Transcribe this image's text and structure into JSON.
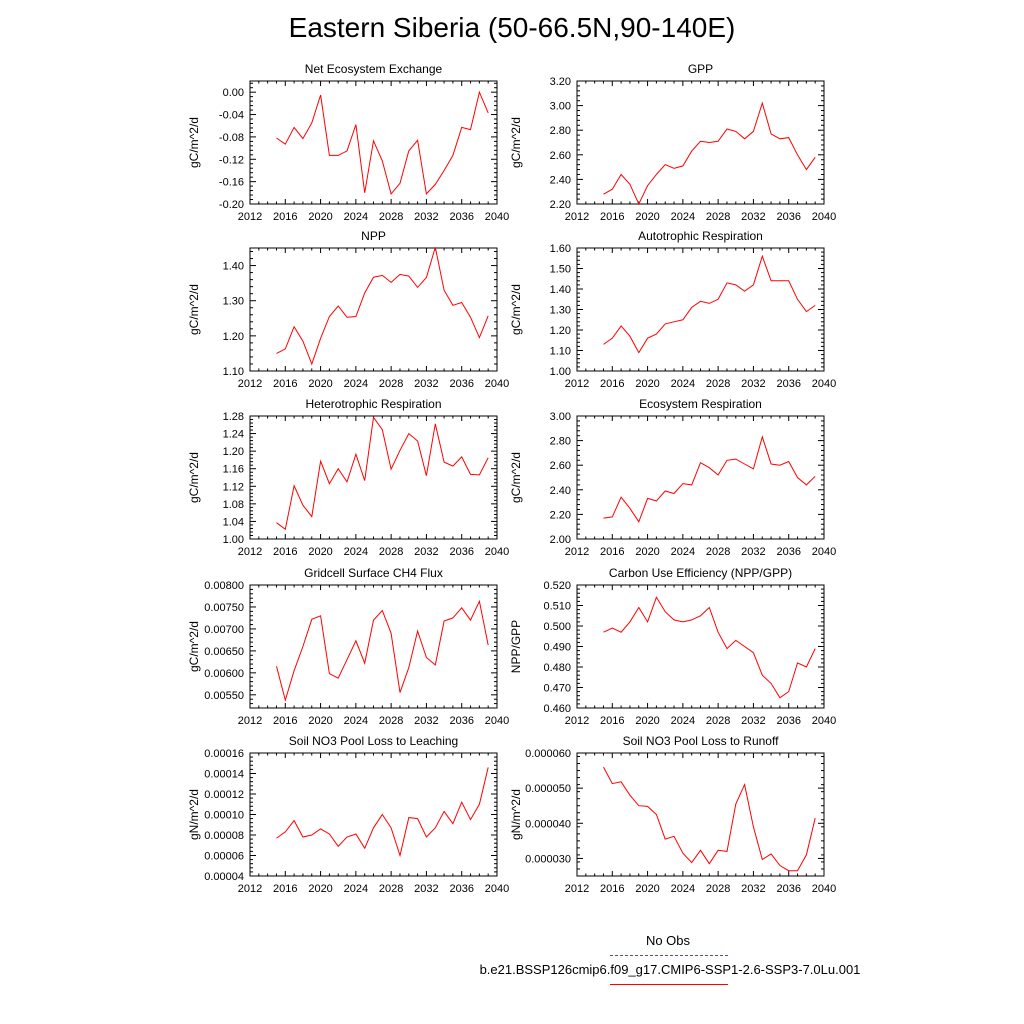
{
  "title": "Eastern Siberia (50-66.5N,90-140E)",
  "legend": {
    "items": [
      {
        "label": "No Obs",
        "color": "#4b4bd2",
        "style": "dashed"
      },
      {
        "label": "b.e21.BSSP126cmip6.f09_g17.CMIP6-SSP1-2.6-SSP3-7.0Lu.001",
        "color": "#ff0000",
        "style": "solid"
      }
    ]
  },
  "chart_data": [
    {
      "type": "line",
      "title": "Net Ecosystem Exchange",
      "ylabel": "gC/m^2/d",
      "xlim": [
        2012,
        2040
      ],
      "ylim": [
        -0.2,
        0.02
      ],
      "xticks": [
        "2012",
        "2016",
        "2020",
        "2024",
        "2028",
        "2032",
        "2036",
        "2040"
      ],
      "yticks": [
        "-0.20",
        "-0.16",
        "-0.12",
        "-0.08",
        "-0.04",
        "0.00"
      ],
      "series": [
        {
          "color": "#ff0000",
          "x": [
            2015,
            2016,
            2017,
            2018,
            2019,
            2020,
            2021,
            2022,
            2023,
            2024,
            2025,
            2026,
            2027,
            2028,
            2029,
            2030,
            2031,
            2032,
            2033,
            2034,
            2035,
            2036,
            2037,
            2038,
            2039
          ],
          "y": [
            -0.082,
            -0.093,
            -0.063,
            -0.083,
            -0.055,
            -0.005,
            -0.113,
            -0.113,
            -0.105,
            -0.058,
            -0.18,
            -0.087,
            -0.123,
            -0.182,
            -0.163,
            -0.105,
            -0.086,
            -0.182,
            -0.165,
            -0.14,
            -0.113,
            -0.063,
            -0.067,
            0.0,
            -0.037
          ]
        }
      ]
    },
    {
      "type": "line",
      "title": "GPP",
      "ylabel": "gC/m^2/d",
      "xlim": [
        2012,
        2040
      ],
      "ylim": [
        2.2,
        3.2
      ],
      "xticks": [
        "2012",
        "2016",
        "2020",
        "2024",
        "2028",
        "2032",
        "2036",
        "2040"
      ],
      "yticks": [
        "2.20",
        "2.40",
        "2.60",
        "2.80",
        "3.00",
        "3.20"
      ],
      "series": [
        {
          "color": "#ff0000",
          "x": [
            2015,
            2016,
            2017,
            2018,
            2019,
            2020,
            2021,
            2022,
            2023,
            2024,
            2025,
            2026,
            2027,
            2028,
            2029,
            2030,
            2031,
            2032,
            2033,
            2034,
            2035,
            2036,
            2037,
            2038,
            2039
          ],
          "y": [
            2.28,
            2.32,
            2.44,
            2.36,
            2.2,
            2.35,
            2.44,
            2.52,
            2.49,
            2.51,
            2.63,
            2.71,
            2.7,
            2.71,
            2.81,
            2.79,
            2.73,
            2.79,
            3.02,
            2.77,
            2.73,
            2.74,
            2.6,
            2.48,
            2.58
          ]
        }
      ]
    },
    {
      "type": "line",
      "title": "NPP",
      "ylabel": "gC/m^2/d",
      "xlim": [
        2012,
        2040
      ],
      "ylim": [
        1.1,
        1.45
      ],
      "xticks": [
        "2012",
        "2016",
        "2020",
        "2024",
        "2028",
        "2032",
        "2036",
        "2040"
      ],
      "yticks": [
        "1.10",
        "1.20",
        "1.30",
        "1.40"
      ],
      "series": [
        {
          "color": "#ff0000",
          "x": [
            2015,
            2016,
            2017,
            2018,
            2019,
            2020,
            2021,
            2022,
            2023,
            2024,
            2025,
            2026,
            2027,
            2028,
            2029,
            2030,
            2031,
            2032,
            2033,
            2034,
            2035,
            2036,
            2037,
            2038,
            2039
          ],
          "y": [
            1.15,
            1.163,
            1.226,
            1.185,
            1.12,
            1.193,
            1.255,
            1.285,
            1.253,
            1.255,
            1.322,
            1.367,
            1.372,
            1.352,
            1.375,
            1.37,
            1.338,
            1.366,
            1.452,
            1.33,
            1.287,
            1.295,
            1.253,
            1.195,
            1.257
          ]
        }
      ]
    },
    {
      "type": "line",
      "title": "Autotrophic Respiration",
      "ylabel": "gC/m^2/d",
      "xlim": [
        2012,
        2040
      ],
      "ylim": [
        1.0,
        1.6
      ],
      "xticks": [
        "2012",
        "2016",
        "2020",
        "2024",
        "2028",
        "2032",
        "2036",
        "2040"
      ],
      "yticks": [
        "1.00",
        "1.10",
        "1.20",
        "1.30",
        "1.40",
        "1.50",
        "1.60"
      ],
      "series": [
        {
          "color": "#ff0000",
          "x": [
            2015,
            2016,
            2017,
            2018,
            2019,
            2020,
            2021,
            2022,
            2023,
            2024,
            2025,
            2026,
            2027,
            2028,
            2029,
            2030,
            2031,
            2032,
            2033,
            2034,
            2035,
            2036,
            2037,
            2038,
            2039
          ],
          "y": [
            1.13,
            1.16,
            1.22,
            1.17,
            1.09,
            1.16,
            1.18,
            1.23,
            1.24,
            1.25,
            1.31,
            1.34,
            1.33,
            1.35,
            1.43,
            1.42,
            1.39,
            1.42,
            1.56,
            1.44,
            1.44,
            1.44,
            1.35,
            1.29,
            1.32
          ]
        }
      ]
    },
    {
      "type": "line",
      "title": "Heterotrophic Respiration",
      "ylabel": "gC/m^2/d",
      "xlim": [
        2012,
        2040
      ],
      "ylim": [
        1.0,
        1.28
      ],
      "xticks": [
        "2012",
        "2016",
        "2020",
        "2024",
        "2028",
        "2032",
        "2036",
        "2040"
      ],
      "yticks": [
        "1.00",
        "1.04",
        "1.08",
        "1.12",
        "1.16",
        "1.20",
        "1.24",
        "1.28"
      ],
      "series": [
        {
          "color": "#ff0000",
          "x": [
            2015,
            2016,
            2017,
            2018,
            2019,
            2020,
            2021,
            2022,
            2023,
            2024,
            2025,
            2026,
            2027,
            2028,
            2029,
            2030,
            2031,
            2032,
            2033,
            2034,
            2035,
            2036,
            2037,
            2038,
            2039
          ],
          "y": [
            1.037,
            1.022,
            1.121,
            1.077,
            1.051,
            1.177,
            1.126,
            1.16,
            1.13,
            1.193,
            1.133,
            1.277,
            1.249,
            1.159,
            1.202,
            1.24,
            1.223,
            1.144,
            1.262,
            1.175,
            1.166,
            1.187,
            1.147,
            1.146,
            1.185
          ]
        }
      ]
    },
    {
      "type": "line",
      "title": "Ecosystem Respiration",
      "ylabel": "gC/m^2/d",
      "xlim": [
        2012,
        2040
      ],
      "ylim": [
        2.0,
        3.0
      ],
      "xticks": [
        "2012",
        "2016",
        "2020",
        "2024",
        "2028",
        "2032",
        "2036",
        "2040"
      ],
      "yticks": [
        "2.00",
        "2.20",
        "2.40",
        "2.60",
        "2.80",
        "3.00"
      ],
      "series": [
        {
          "color": "#ff0000",
          "x": [
            2015,
            2016,
            2017,
            2018,
            2019,
            2020,
            2021,
            2022,
            2023,
            2024,
            2025,
            2026,
            2027,
            2028,
            2029,
            2030,
            2031,
            2032,
            2033,
            2034,
            2035,
            2036,
            2037,
            2038,
            2039
          ],
          "y": [
            2.17,
            2.18,
            2.34,
            2.25,
            2.14,
            2.33,
            2.31,
            2.39,
            2.37,
            2.45,
            2.44,
            2.62,
            2.58,
            2.52,
            2.64,
            2.65,
            2.61,
            2.57,
            2.83,
            2.61,
            2.6,
            2.63,
            2.5,
            2.44,
            2.51
          ]
        }
      ]
    },
    {
      "type": "line",
      "title": "Gridcell Surface CH4 Flux",
      "ylabel": "gC/m^2/d",
      "xlim": [
        2012,
        2040
      ],
      "ylim": [
        0.0052,
        0.008
      ],
      "xticks": [
        "2012",
        "2016",
        "2020",
        "2024",
        "2028",
        "2032",
        "2036",
        "2040"
      ],
      "yticks": [
        "0.00550",
        "0.00600",
        "0.00650",
        "0.00700",
        "0.00750",
        "0.00800"
      ],
      "series": [
        {
          "color": "#ff0000",
          "x": [
            2015,
            2016,
            2017,
            2018,
            2019,
            2020,
            2021,
            2022,
            2023,
            2024,
            2025,
            2026,
            2027,
            2028,
            2029,
            2030,
            2031,
            2032,
            2033,
            2034,
            2035,
            2036,
            2037,
            2038,
            2039
          ],
          "y": [
            0.00615,
            0.00538,
            0.00605,
            0.0066,
            0.00722,
            0.0073,
            0.00598,
            0.00588,
            0.0063,
            0.00673,
            0.00622,
            0.0072,
            0.00742,
            0.0069,
            0.00555,
            0.00612,
            0.00695,
            0.00635,
            0.00618,
            0.00718,
            0.00725,
            0.00748,
            0.0072,
            0.00763,
            0.00663
          ]
        }
      ]
    },
    {
      "type": "line",
      "title": "Carbon Use Efficiency (NPP/GPP)",
      "ylabel": "NPP/GPP",
      "xlim": [
        2012,
        2040
      ],
      "ylim": [
        0.46,
        0.52
      ],
      "xticks": [
        "2012",
        "2016",
        "2020",
        "2024",
        "2028",
        "2032",
        "2036",
        "2040"
      ],
      "yticks": [
        "0.460",
        "0.470",
        "0.480",
        "0.490",
        "0.500",
        "0.510",
        "0.520"
      ],
      "series": [
        {
          "color": "#ff0000",
          "x": [
            2015,
            2016,
            2017,
            2018,
            2019,
            2020,
            2021,
            2022,
            2023,
            2024,
            2025,
            2026,
            2027,
            2028,
            2029,
            2030,
            2031,
            2032,
            2033,
            2034,
            2035,
            2036,
            2037,
            2038,
            2039
          ],
          "y": [
            0.497,
            0.499,
            0.497,
            0.502,
            0.509,
            0.502,
            0.514,
            0.507,
            0.503,
            0.502,
            0.503,
            0.505,
            0.509,
            0.497,
            0.489,
            0.493,
            0.49,
            0.487,
            0.476,
            0.472,
            0.465,
            0.468,
            0.482,
            0.48,
            0.489
          ]
        }
      ]
    },
    {
      "type": "line",
      "title": "Soil NO3 Pool Loss to Leaching",
      "ylabel": "gN/m^2/d",
      "xlim": [
        2012,
        2040
      ],
      "ylim": [
        4e-05,
        0.00016
      ],
      "xticks": [
        "2012",
        "2016",
        "2020",
        "2024",
        "2028",
        "2032",
        "2036",
        "2040"
      ],
      "yticks": [
        "0.00004",
        "0.00006",
        "0.00008",
        "0.00010",
        "0.00012",
        "0.00014",
        "0.00016"
      ],
      "series": [
        {
          "color": "#ff0000",
          "x": [
            2015,
            2016,
            2017,
            2018,
            2019,
            2020,
            2021,
            2022,
            2023,
            2024,
            2025,
            2026,
            2027,
            2028,
            2029,
            2030,
            2031,
            2032,
            2033,
            2034,
            2035,
            2036,
            2037,
            2038,
            2039
          ],
          "y": [
            7.7e-05,
            8.3e-05,
            9.4e-05,
            7.8e-05,
            8e-05,
            8.6e-05,
            8.1e-05,
            6.9e-05,
            7.8e-05,
            8.1e-05,
            6.7e-05,
            8.7e-05,
            0.0001,
            8.7e-05,
            6e-05,
            9.7e-05,
            9.6e-05,
            7.8e-05,
            8.7e-05,
            0.000103,
            9.1e-05,
            0.000112,
            9.5e-05,
            0.00011,
            0.000146
          ]
        }
      ]
    },
    {
      "type": "line",
      "title": "Soil NO3 Pool Loss to Runoff",
      "ylabel": "gN/m^2/d",
      "xlim": [
        2012,
        2040
      ],
      "ylim": [
        2.5e-05,
        6e-05
      ],
      "xticks": [
        "2012",
        "2016",
        "2020",
        "2024",
        "2028",
        "2032",
        "2036",
        "2040"
      ],
      "yticks": [
        "0.000030",
        "0.000040",
        "0.000050",
        "0.000060"
      ],
      "series": [
        {
          "color": "#ff0000",
          "x": [
            2015,
            2016,
            2017,
            2018,
            2019,
            2020,
            2021,
            2022,
            2023,
            2024,
            2025,
            2026,
            2027,
            2028,
            2029,
            2030,
            2031,
            2032,
            2033,
            2034,
            2035,
            2036,
            2037,
            2038,
            2039
          ],
          "y": [
            5.6e-05,
            5.13e-05,
            5.18e-05,
            4.8e-05,
            4.5e-05,
            4.48e-05,
            4.25e-05,
            3.55e-05,
            3.63e-05,
            3.15e-05,
            2.88e-05,
            3.23e-05,
            2.85e-05,
            3.23e-05,
            3.2e-05,
            4.55e-05,
            5.1e-05,
            3.9e-05,
            2.97e-05,
            3.13e-05,
            2.8e-05,
            2.65e-05,
            2.65e-05,
            3.1e-05,
            4.15e-05
          ]
        }
      ]
    }
  ]
}
